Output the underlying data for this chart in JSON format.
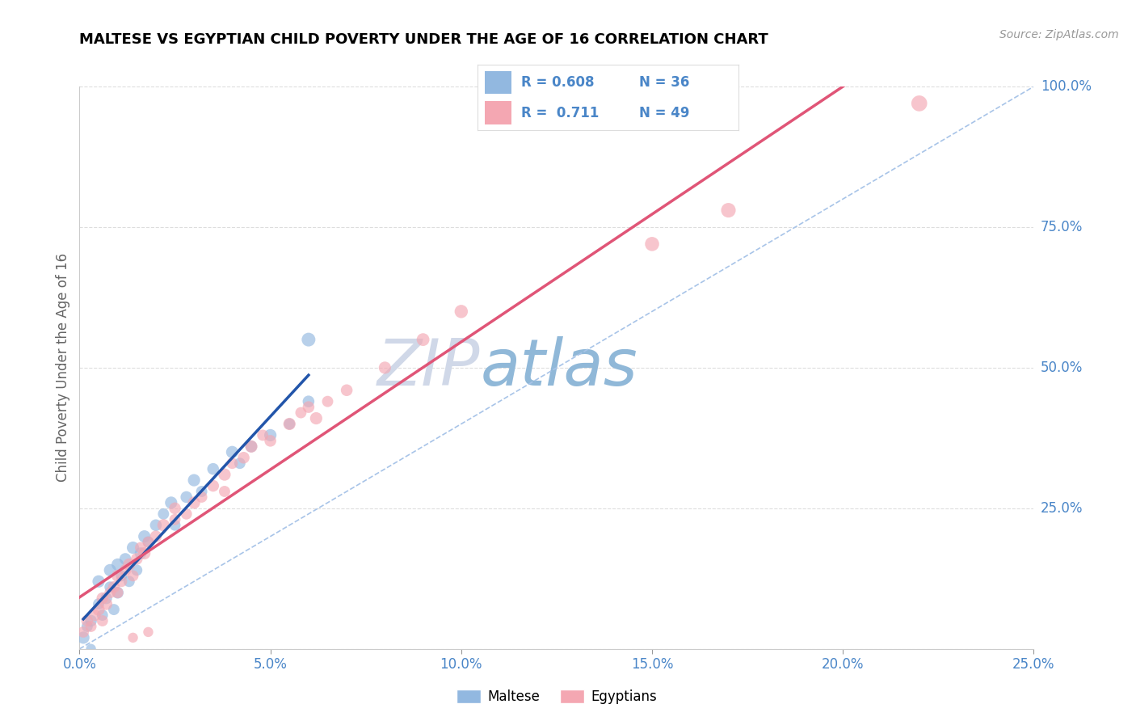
{
  "title": "MALTESE VS EGYPTIAN CHILD POVERTY UNDER THE AGE OF 16 CORRELATION CHART",
  "source": "Source: ZipAtlas.com",
  "ylabel": "Child Poverty Under the Age of 16",
  "xlim": [
    0.0,
    0.25
  ],
  "ylim": [
    0.0,
    1.0
  ],
  "xticks": [
    0.0,
    0.05,
    0.1,
    0.15,
    0.2,
    0.25
  ],
  "yticks": [
    0.0,
    0.25,
    0.5,
    0.75,
    1.0
  ],
  "ytick_labels": [
    "",
    "25.0%",
    "50.0%",
    "75.0%",
    "100.0%"
  ],
  "maltese_color": "#92b8e0",
  "egyptian_color": "#f4a7b2",
  "maltese_line_color": "#2255aa",
  "egyptian_line_color": "#e05577",
  "ref_line_color": "#a8c4e8",
  "legend_maltese_R": "0.608",
  "legend_maltese_N": "36",
  "legend_egyptian_R": "0.711",
  "legend_egyptian_N": "49",
  "watermark_zip": "ZIP",
  "watermark_atlas": "atlas",
  "watermark_zip_color": "#d0d8e8",
  "watermark_atlas_color": "#90b8d8",
  "background_color": "#ffffff",
  "title_color": "#000000",
  "axis_label_color": "#666666",
  "tick_label_color": "#4a86c8",
  "grid_color": "#dddddd",
  "maltese_scatter": [
    [
      0.001,
      0.02
    ],
    [
      0.002,
      0.04
    ],
    [
      0.003,
      0.05
    ],
    [
      0.005,
      0.08
    ],
    [
      0.005,
      0.12
    ],
    [
      0.006,
      0.06
    ],
    [
      0.007,
      0.09
    ],
    [
      0.008,
      0.11
    ],
    [
      0.008,
      0.14
    ],
    [
      0.009,
      0.07
    ],
    [
      0.01,
      0.1
    ],
    [
      0.01,
      0.15
    ],
    [
      0.011,
      0.13
    ],
    [
      0.012,
      0.16
    ],
    [
      0.013,
      0.12
    ],
    [
      0.014,
      0.18
    ],
    [
      0.015,
      0.14
    ],
    [
      0.016,
      0.17
    ],
    [
      0.017,
      0.2
    ],
    [
      0.018,
      0.19
    ],
    [
      0.02,
      0.22
    ],
    [
      0.022,
      0.24
    ],
    [
      0.024,
      0.26
    ],
    [
      0.025,
      0.22
    ],
    [
      0.028,
      0.27
    ],
    [
      0.03,
      0.3
    ],
    [
      0.032,
      0.28
    ],
    [
      0.035,
      0.32
    ],
    [
      0.04,
      0.35
    ],
    [
      0.042,
      0.33
    ],
    [
      0.045,
      0.36
    ],
    [
      0.05,
      0.38
    ],
    [
      0.055,
      0.4
    ],
    [
      0.06,
      0.44
    ],
    [
      0.06,
      0.55
    ],
    [
      0.003,
      0.0
    ]
  ],
  "egyptian_scatter": [
    [
      0.001,
      0.03
    ],
    [
      0.002,
      0.05
    ],
    [
      0.003,
      0.04
    ],
    [
      0.004,
      0.06
    ],
    [
      0.005,
      0.07
    ],
    [
      0.006,
      0.05
    ],
    [
      0.006,
      0.09
    ],
    [
      0.007,
      0.08
    ],
    [
      0.008,
      0.1
    ],
    [
      0.009,
      0.11
    ],
    [
      0.01,
      0.1
    ],
    [
      0.01,
      0.13
    ],
    [
      0.011,
      0.12
    ],
    [
      0.012,
      0.14
    ],
    [
      0.013,
      0.15
    ],
    [
      0.014,
      0.13
    ],
    [
      0.015,
      0.16
    ],
    [
      0.016,
      0.18
    ],
    [
      0.017,
      0.17
    ],
    [
      0.018,
      0.19
    ],
    [
      0.02,
      0.2
    ],
    [
      0.022,
      0.22
    ],
    [
      0.025,
      0.23
    ],
    [
      0.025,
      0.25
    ],
    [
      0.028,
      0.24
    ],
    [
      0.03,
      0.26
    ],
    [
      0.032,
      0.27
    ],
    [
      0.035,
      0.29
    ],
    [
      0.038,
      0.31
    ],
    [
      0.04,
      0.33
    ],
    [
      0.043,
      0.34
    ],
    [
      0.045,
      0.36
    ],
    [
      0.048,
      0.38
    ],
    [
      0.05,
      0.37
    ],
    [
      0.055,
      0.4
    ],
    [
      0.058,
      0.42
    ],
    [
      0.06,
      0.43
    ],
    [
      0.062,
      0.41
    ],
    [
      0.065,
      0.44
    ],
    [
      0.07,
      0.46
    ],
    [
      0.08,
      0.5
    ],
    [
      0.09,
      0.55
    ],
    [
      0.1,
      0.6
    ],
    [
      0.014,
      0.02
    ],
    [
      0.018,
      0.03
    ],
    [
      0.15,
      0.72
    ],
    [
      0.17,
      0.78
    ],
    [
      0.22,
      0.97
    ],
    [
      0.038,
      0.28
    ]
  ],
  "maltese_scatter_sizes": [
    120,
    100,
    110,
    100,
    120,
    100,
    110,
    100,
    120,
    100,
    110,
    120,
    100,
    110,
    100,
    120,
    100,
    110,
    120,
    100,
    110,
    100,
    120,
    100,
    110,
    120,
    100,
    110,
    120,
    100,
    110,
    120,
    100,
    110,
    150,
    80
  ],
  "egyptian_scatter_sizes": [
    100,
    110,
    100,
    110,
    120,
    100,
    110,
    120,
    100,
    110,
    100,
    120,
    100,
    110,
    120,
    100,
    110,
    100,
    120,
    100,
    110,
    120,
    100,
    110,
    100,
    120,
    100,
    110,
    120,
    100,
    110,
    120,
    100,
    110,
    120,
    100,
    110,
    120,
    100,
    110,
    120,
    130,
    140,
    80,
    80,
    160,
    170,
    200,
    100
  ]
}
